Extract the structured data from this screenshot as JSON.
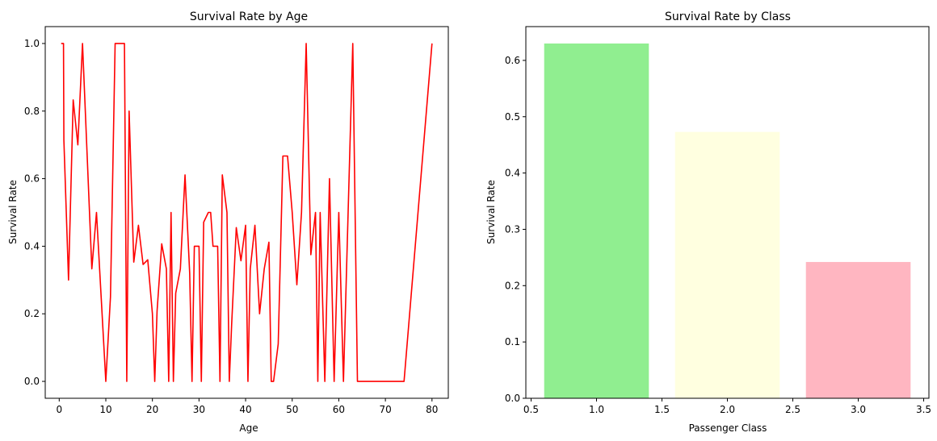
{
  "chart_data": [
    {
      "type": "line",
      "title": "Survival Rate by Age",
      "xlabel": "Age",
      "ylabel": "Survival Rate",
      "xlim": [
        -3,
        83.5
      ],
      "ylim": [
        -0.05,
        1.05
      ],
      "xticks": [
        0,
        10,
        20,
        30,
        40,
        50,
        60,
        70,
        80
      ],
      "yticks": [
        0.0,
        0.2,
        0.4,
        0.6,
        0.8,
        1.0
      ],
      "ytick_format": 1,
      "grid": false,
      "line_color": "#ff0000",
      "series": [
        {
          "x": [
            0.42,
            0.67,
            0.75,
            0.83,
            0.92,
            1,
            2,
            3,
            4,
            5,
            6,
            7,
            8,
            9,
            10,
            11,
            12,
            13,
            14,
            14.5,
            15,
            16,
            17,
            18,
            19,
            20,
            20.5,
            21,
            22,
            23,
            23.5,
            24,
            24.5,
            25,
            26,
            27,
            28,
            28.5,
            29,
            30,
            30.5,
            31,
            32,
            32.5,
            33,
            34,
            34.5,
            35,
            36,
            36.5,
            37,
            38,
            39,
            40,
            40.5,
            41,
            42,
            43,
            44,
            45,
            45.5,
            46,
            47,
            48,
            49,
            50,
            51,
            52,
            53,
            54,
            55,
            55.5,
            56,
            57,
            58,
            59,
            60,
            61,
            62,
            63,
            64,
            65,
            66,
            70,
            70.5,
            71,
            74,
            80
          ],
          "y": [
            1.0,
            1.0,
            1.0,
            1.0,
            1.0,
            0.714,
            0.3,
            0.833,
            0.7,
            1.0,
            0.667,
            0.333,
            0.5,
            0.25,
            0.0,
            0.25,
            1.0,
            1.0,
            1.0,
            0.0,
            0.8,
            0.353,
            0.462,
            0.346,
            0.36,
            0.2,
            0.0,
            0.208,
            0.407,
            0.333,
            0.0,
            0.5,
            0.0,
            0.261,
            0.333,
            0.611,
            0.32,
            0.0,
            0.4,
            0.4,
            0.0,
            0.471,
            0.5,
            0.5,
            0.4,
            0.4,
            0.0,
            0.611,
            0.5,
            0.0,
            0.167,
            0.455,
            0.357,
            0.462,
            0.0,
            0.333,
            0.462,
            0.2,
            0.333,
            0.412,
            0.0,
            0.0,
            0.111,
            0.667,
            0.667,
            0.5,
            0.286,
            0.5,
            1.0,
            0.375,
            0.5,
            0.0,
            0.5,
            0.0,
            0.6,
            0.0,
            0.5,
            0.0,
            0.5,
            1.0,
            0.0,
            0.0,
            0.0,
            0.0,
            0.0,
            0.0,
            0.0,
            1.0
          ]
        }
      ]
    },
    {
      "type": "bar",
      "title": "Survival Rate by Class",
      "xlabel": "Passenger Class",
      "ylabel": "Survival Rate",
      "xlim": [
        0.46,
        3.54
      ],
      "ylim": [
        0,
        0.66
      ],
      "xticks": [
        0.5,
        1.0,
        1.5,
        2.0,
        2.5,
        3.0,
        3.5
      ],
      "yticks": [
        0.0,
        0.1,
        0.2,
        0.3,
        0.4,
        0.5,
        0.6
      ],
      "xtick_format": 1,
      "ytick_format": 1,
      "grid": false,
      "bar_width": 0.8,
      "categories": [
        1,
        2,
        3
      ],
      "values": [
        0.63,
        0.473,
        0.242
      ],
      "colors": [
        "#90ee90",
        "#ffffe0",
        "#ffb6c1"
      ]
    }
  ]
}
